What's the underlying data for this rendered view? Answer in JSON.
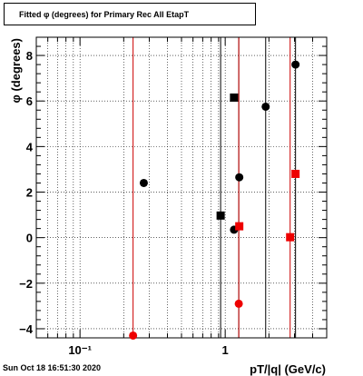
{
  "title": "Fitted φ (degrees) for Primary Rec All EtapT",
  "timestamp": "Sun Oct 18 16:51:30 2020",
  "chart_data": {
    "type": "scatter",
    "title": "Fitted φ (degrees) for Primary Rec All EtapT",
    "xlabel": "pT/|q| (GeV/c)",
    "ylabel": "φ (degrees)",
    "x_scale": "log",
    "xlim": [
      0.05,
      5
    ],
    "ylim": [
      -4.4,
      8.8
    ],
    "x_ticks": [
      {
        "value": 0.1,
        "label": "10⁻¹"
      },
      {
        "value": 1,
        "label": "1"
      }
    ],
    "y_ticks": [
      -4,
      -2,
      0,
      2,
      4,
      6,
      8
    ],
    "grid": true,
    "vertical_lines": [
      {
        "x": 0.232,
        "color": "#cc0000"
      },
      {
        "x": 0.93,
        "color": "#000000"
      },
      {
        "x": 1.24,
        "color": "#000000"
      },
      {
        "x": 1.24,
        "color": "#cc0000"
      },
      {
        "x": 1.9,
        "color": "#000000"
      },
      {
        "x": 2.8,
        "color": "#cc0000"
      },
      {
        "x": 3.05,
        "color": "#000000"
      }
    ],
    "series": [
      {
        "marker": "circle",
        "color": "#000000",
        "points": [
          {
            "x": 0.275,
            "y": 2.4
          },
          {
            "x": 1.15,
            "y": 0.35
          },
          {
            "x": 1.25,
            "y": 2.65
          },
          {
            "x": 1.9,
            "y": 5.75
          },
          {
            "x": 3.05,
            "y": 7.6
          }
        ]
      },
      {
        "marker": "square",
        "color": "#000000",
        "points": [
          {
            "x": 0.93,
            "y": 0.97
          },
          {
            "x": 1.15,
            "y": 6.15
          }
        ]
      },
      {
        "marker": "circle",
        "color": "#ee0000",
        "points": [
          {
            "x": 0.232,
            "y": -4.3
          },
          {
            "x": 1.24,
            "y": -2.9
          }
        ]
      },
      {
        "marker": "square",
        "color": "#ee0000",
        "points": [
          {
            "x": 1.25,
            "y": 0.5
          },
          {
            "x": 2.8,
            "y": 0.02
          },
          {
            "x": 3.05,
            "y": 2.8
          }
        ]
      }
    ]
  }
}
